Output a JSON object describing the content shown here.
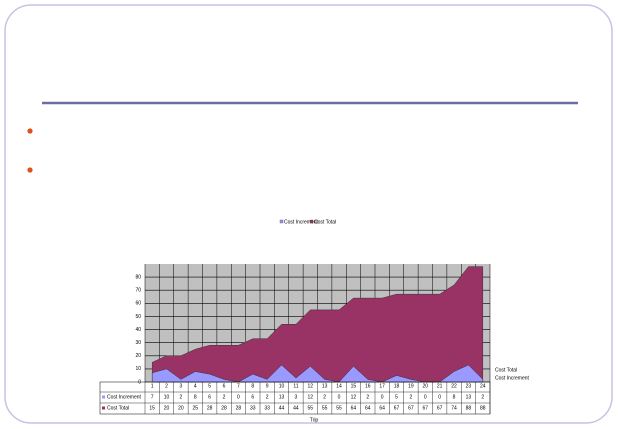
{
  "chart_data": {
    "type": "area",
    "xlabel": "Trip",
    "categories": [
      "1",
      "2",
      "3",
      "4",
      "5",
      "6",
      "7",
      "8",
      "9",
      "10",
      "11",
      "12",
      "13",
      "14",
      "15",
      "16",
      "17",
      "18",
      "19",
      "20",
      "21",
      "22",
      "23",
      "24"
    ],
    "series": [
      {
        "name": "Cost Increment",
        "color": "#9999ff",
        "values": [
          7,
          10,
          2,
          8,
          6,
          2,
          0,
          6,
          2,
          13,
          3,
          12,
          2,
          0,
          12,
          2,
          0,
          5,
          2,
          0,
          0,
          8,
          13,
          2
        ]
      },
      {
        "name": "Cost Total",
        "color": "#993366",
        "values": [
          15,
          20,
          20,
          25,
          28,
          28,
          28,
          33,
          33,
          44,
          44,
          55,
          55,
          55,
          64,
          64,
          64,
          67,
          67,
          67,
          67,
          74,
          88,
          88
        ]
      }
    ],
    "ylim": [
      0,
      90
    ],
    "yticks": [
      0,
      10,
      20,
      30,
      40,
      50,
      60,
      70,
      80
    ],
    "grid": true
  }
}
